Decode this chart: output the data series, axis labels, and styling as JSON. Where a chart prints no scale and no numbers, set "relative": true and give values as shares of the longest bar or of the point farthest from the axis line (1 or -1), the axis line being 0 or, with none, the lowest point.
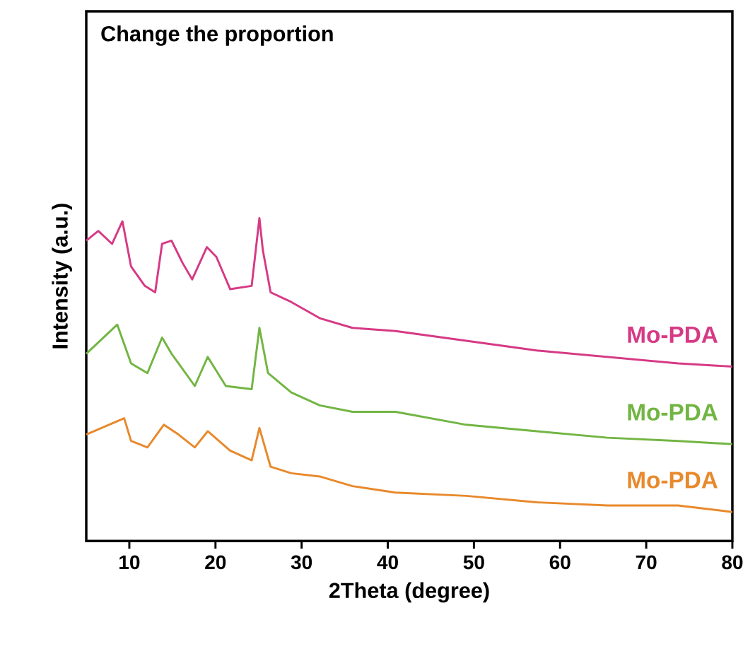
{
  "chart_data": {
    "type": "line",
    "title": "Change the proportion",
    "xlabel": "2Theta (degree)",
    "ylabel": "Intensity (a.u.)",
    "relative": true,
    "xlim": [
      5,
      80
    ],
    "xticks": [
      10,
      20,
      30,
      40,
      50,
      60,
      70,
      80
    ],
    "series": [
      {
        "name": "Mo-PDA",
        "color": "#d63a85",
        "x": [
          5,
          6.4,
          8,
          9.2,
          10.2,
          11.8,
          13,
          13.8,
          14.9,
          16.2,
          17.3,
          19,
          20.1,
          21.7,
          24.2,
          25.1,
          25.5,
          26.4,
          28.8,
          32.1,
          35.9,
          40.9,
          49.1,
          57.3,
          65.5,
          73.7,
          80
        ],
        "values": [
          0.93,
          0.96,
          0.92,
          0.99,
          0.85,
          0.79,
          0.77,
          0.92,
          0.93,
          0.86,
          0.81,
          0.91,
          0.88,
          0.78,
          0.79,
          1.0,
          0.9,
          0.77,
          0.74,
          0.69,
          0.66,
          0.65,
          0.62,
          0.59,
          0.57,
          0.55,
          0.54
        ]
      },
      {
        "name": "Mo-PDA",
        "color": "#72b543",
        "x": [
          5,
          8.6,
          10.2,
          12.1,
          13.8,
          14.9,
          17.6,
          19.1,
          21.2,
          24.2,
          25.1,
          26.1,
          28.8,
          32.1,
          35.9,
          40.9,
          49.1,
          57.3,
          65.5,
          73.7,
          80
        ],
        "values": [
          0.58,
          0.67,
          0.55,
          0.52,
          0.63,
          0.58,
          0.48,
          0.57,
          0.48,
          0.47,
          0.66,
          0.52,
          0.46,
          0.42,
          0.4,
          0.4,
          0.36,
          0.34,
          0.32,
          0.31,
          0.3
        ]
      },
      {
        "name": "Mo-PDA",
        "color": "#e8892c",
        "x": [
          5,
          9.4,
          10.2,
          12.1,
          14.0,
          15.7,
          17.6,
          19.1,
          21.7,
          24.2,
          25.1,
          26.4,
          28.8,
          32.1,
          35.9,
          40.9,
          49.1,
          57.3,
          65.5,
          73.7,
          80
        ],
        "values": [
          0.33,
          0.38,
          0.31,
          0.29,
          0.36,
          0.33,
          0.29,
          0.34,
          0.28,
          0.25,
          0.35,
          0.23,
          0.21,
          0.2,
          0.17,
          0.15,
          0.14,
          0.12,
          0.11,
          0.11,
          0.09
        ]
      }
    ]
  }
}
